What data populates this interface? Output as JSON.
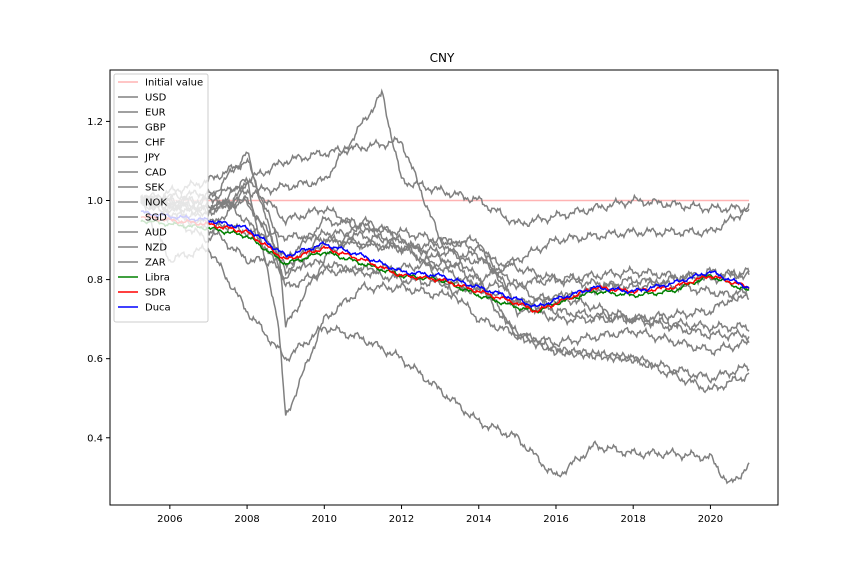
{
  "chart_data": {
    "type": "line",
    "title": "CNY",
    "xlabel": "",
    "ylabel": "",
    "xlim": [
      2004.45,
      2021.75
    ],
    "ylim": [
      0.23,
      1.33
    ],
    "x_ticks": [
      2006,
      2008,
      2010,
      2012,
      2014,
      2016,
      2018,
      2020
    ],
    "x_tick_labels": [
      "2006",
      "2008",
      "2010",
      "2012",
      "2014",
      "2016",
      "2018",
      "2020"
    ],
    "y_ticks": [
      0.4,
      0.6,
      0.8,
      1.0,
      1.2
    ],
    "y_tick_labels": [
      "0.4",
      "0.6",
      "0.8",
      "1.0",
      "1.2"
    ],
    "grid": false,
    "legend_position": "top-left",
    "colors": {
      "initial": "#ffb3b3",
      "currency": "#808080",
      "libra": "#008000",
      "sdr": "#ff0000",
      "duca": "#0000ff"
    },
    "series": [
      {
        "name": "Initial value",
        "color": "#ffb3b3",
        "x": [
          2005.25,
          2021.0
        ],
        "y": [
          1.0,
          1.0
        ]
      },
      {
        "name": "USD",
        "color": "#808080",
        "x": [
          2005.25,
          2007,
          2008,
          2010,
          2012,
          2014,
          2016,
          2018,
          2020,
          2021
        ],
        "y": [
          1.0,
          0.93,
          0.85,
          0.84,
          0.8,
          0.78,
          0.8,
          0.78,
          0.82,
          0.81
        ]
      },
      {
        "name": "EUR",
        "color": "#808080",
        "x": [
          2005.25,
          2007,
          2008,
          2009,
          2010,
          2012,
          2014,
          2015,
          2016,
          2018,
          2020,
          2021
        ],
        "y": [
          1.0,
          0.97,
          1.05,
          0.95,
          0.98,
          0.88,
          0.9,
          0.72,
          0.75,
          0.8,
          0.77,
          0.75
        ]
      },
      {
        "name": "GBP",
        "color": "#808080",
        "x": [
          2005.25,
          2007,
          2008,
          2009,
          2010,
          2012,
          2014,
          2016,
          2018,
          2020,
          2021
        ],
        "y": [
          1.0,
          1.0,
          1.12,
          0.78,
          0.82,
          0.83,
          0.85,
          0.72,
          0.7,
          0.68,
          0.68
        ]
      },
      {
        "name": "CHF",
        "color": "#808080",
        "x": [
          2005.25,
          2007,
          2008,
          2010,
          2011.5,
          2012,
          2014,
          2015,
          2016,
          2018,
          2020,
          2021
        ],
        "y": [
          1.0,
          0.97,
          1.02,
          1.05,
          1.27,
          1.05,
          1.0,
          0.94,
          0.96,
          1.0,
          0.98,
          0.98
        ]
      },
      {
        "name": "JPY",
        "color": "#808080",
        "x": [
          2005.25,
          2007,
          2008,
          2009,
          2010,
          2012,
          2013,
          2014,
          2016,
          2018,
          2020,
          2021
        ],
        "y": [
          1.0,
          0.9,
          1.05,
          1.1,
          1.12,
          1.15,
          0.9,
          0.8,
          0.9,
          0.92,
          0.92,
          0.98
        ]
      },
      {
        "name": "CAD",
        "color": "#808080",
        "x": [
          2005.25,
          2007,
          2008,
          2009,
          2010,
          2012,
          2014,
          2015,
          2016,
          2018,
          2020,
          2021
        ],
        "y": [
          1.0,
          1.02,
          0.95,
          0.8,
          0.9,
          0.88,
          0.78,
          0.66,
          0.64,
          0.67,
          0.62,
          0.64
        ]
      },
      {
        "name": "SEK",
        "color": "#808080",
        "x": [
          2005.25,
          2007,
          2008,
          2009,
          2010,
          2012,
          2014,
          2015,
          2016,
          2018,
          2020,
          2021
        ],
        "y": [
          1.0,
          0.98,
          1.0,
          0.85,
          0.95,
          0.92,
          0.88,
          0.74,
          0.76,
          0.7,
          0.72,
          0.78
        ]
      },
      {
        "name": "NOK",
        "color": "#808080",
        "x": [
          2005.25,
          2007,
          2008,
          2009,
          2010,
          2012,
          2014,
          2015,
          2016,
          2018,
          2020,
          2021
        ],
        "y": [
          1.0,
          0.98,
          1.0,
          0.82,
          0.92,
          0.9,
          0.8,
          0.66,
          0.62,
          0.6,
          0.52,
          0.56
        ]
      },
      {
        "name": "SGD",
        "color": "#808080",
        "x": [
          2005.25,
          2007,
          2008,
          2010,
          2012,
          2014,
          2016,
          2018,
          2020,
          2021
        ],
        "y": [
          1.0,
          0.95,
          0.92,
          0.9,
          0.88,
          0.86,
          0.8,
          0.82,
          0.8,
          0.82
        ]
      },
      {
        "name": "AUD",
        "color": "#808080",
        "x": [
          2005.25,
          2007,
          2008,
          2008.8,
          2009,
          2010,
          2011,
          2012,
          2013,
          2014,
          2015,
          2016,
          2018,
          2020,
          2021
        ],
        "y": [
          1.0,
          1.05,
          1.1,
          0.9,
          0.68,
          0.85,
          0.95,
          0.9,
          0.8,
          0.7,
          0.66,
          0.62,
          0.6,
          0.55,
          0.58
        ]
      },
      {
        "name": "NZD",
        "color": "#808080",
        "x": [
          2005.25,
          2007,
          2008,
          2008.8,
          2009,
          2010,
          2011,
          2012,
          2013,
          2014,
          2016,
          2018,
          2020,
          2021
        ],
        "y": [
          1.0,
          1.0,
          1.05,
          0.7,
          0.45,
          0.7,
          0.78,
          0.78,
          0.76,
          0.78,
          0.7,
          0.7,
          0.66,
          0.66
        ]
      },
      {
        "name": "ZAR",
        "color": "#808080",
        "x": [
          2005.25,
          2006,
          2007,
          2008,
          2009,
          2010,
          2011,
          2012,
          2013,
          2014,
          2015,
          2016,
          2017,
          2018,
          2019,
          2020,
          2020.5,
          2021
        ],
        "y": [
          1.0,
          0.85,
          0.88,
          0.72,
          0.6,
          0.68,
          0.65,
          0.6,
          0.52,
          0.44,
          0.4,
          0.3,
          0.38,
          0.36,
          0.36,
          0.35,
          0.28,
          0.33
        ]
      },
      {
        "name": "Libra",
        "color": "#008000",
        "x": [
          2005.25,
          2006,
          2007,
          2008,
          2009,
          2010,
          2011,
          2012,
          2013,
          2014,
          2015,
          2015.5,
          2016,
          2017,
          2018,
          2019,
          2020,
          2021
        ],
        "y": [
          0.95,
          0.94,
          0.93,
          0.91,
          0.84,
          0.87,
          0.84,
          0.81,
          0.8,
          0.76,
          0.73,
          0.72,
          0.74,
          0.77,
          0.76,
          0.77,
          0.81,
          0.77
        ]
      },
      {
        "name": "SDR",
        "color": "#ff0000",
        "x": [
          2005.25,
          2006,
          2007,
          2008,
          2009,
          2010,
          2011,
          2012,
          2013,
          2014,
          2015,
          2015.5,
          2016,
          2017,
          2018,
          2019,
          2020,
          2021
        ],
        "y": [
          0.96,
          0.95,
          0.94,
          0.92,
          0.85,
          0.88,
          0.85,
          0.81,
          0.8,
          0.77,
          0.74,
          0.72,
          0.74,
          0.78,
          0.77,
          0.78,
          0.81,
          0.78
        ]
      },
      {
        "name": "Duca",
        "color": "#0000ff",
        "x": [
          2005.25,
          2006,
          2007,
          2008,
          2009,
          2010,
          2011,
          2012,
          2013,
          2014,
          2015,
          2015.5,
          2016,
          2017,
          2018,
          2019,
          2020,
          2021
        ],
        "y": [
          0.97,
          0.96,
          0.95,
          0.93,
          0.86,
          0.89,
          0.86,
          0.82,
          0.81,
          0.78,
          0.75,
          0.73,
          0.75,
          0.78,
          0.77,
          0.79,
          0.82,
          0.78
        ]
      }
    ]
  }
}
